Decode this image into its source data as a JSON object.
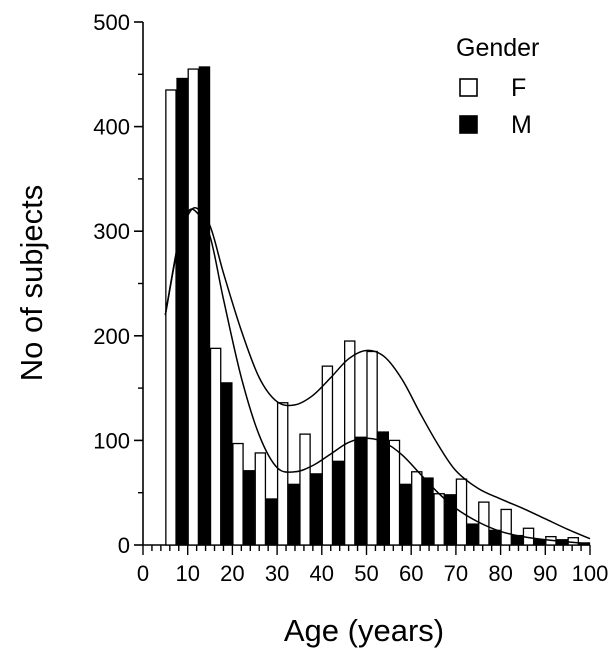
{
  "chart_data": {
    "type": "bar",
    "xlabel": "Age (years)",
    "ylabel": "No of subjects",
    "xlim": [
      0,
      100
    ],
    "ylim": [
      0,
      500
    ],
    "x_ticks": [
      "0",
      "10",
      "20",
      "30",
      "40",
      "50",
      "60",
      "70",
      "80",
      "90",
      "100"
    ],
    "y_ticks": [
      "0",
      "100",
      "200",
      "300",
      "400",
      "500"
    ],
    "x": [
      7.5,
      12.5,
      17.5,
      22.5,
      27.5,
      32.5,
      37.5,
      42.5,
      47.5,
      52.5,
      57.5,
      62.5,
      67.5,
      72.5,
      77.5,
      82.5,
      87.5,
      92.5,
      97.5
    ],
    "legend_title": "Gender",
    "legend_position": "top-right",
    "grid": false,
    "series": [
      {
        "name": "F",
        "color": "#ffffff",
        "values": [
          435,
          455,
          188,
          97,
          88,
          136,
          106,
          171,
          195,
          185,
          100,
          70,
          49,
          63,
          41,
          34,
          16,
          8,
          7
        ],
        "curve": [
          [
            5,
            220
          ],
          [
            8,
            292
          ],
          [
            10,
            315
          ],
          [
            12,
            322
          ],
          [
            15,
            305
          ],
          [
            18,
            260
          ],
          [
            22,
            205
          ],
          [
            26,
            160
          ],
          [
            30,
            137
          ],
          [
            34,
            134
          ],
          [
            38,
            143
          ],
          [
            42,
            160
          ],
          [
            46,
            178
          ],
          [
            50,
            186
          ],
          [
            54,
            180
          ],
          [
            58,
            158
          ],
          [
            62,
            126
          ],
          [
            66,
            96
          ],
          [
            70,
            71
          ],
          [
            75,
            54
          ],
          [
            80,
            44
          ],
          [
            85,
            35
          ],
          [
            90,
            25
          ],
          [
            95,
            15
          ],
          [
            100,
            6
          ]
        ]
      },
      {
        "name": "M",
        "color": "#000000",
        "values": [
          446,
          457,
          155,
          71,
          44,
          58,
          68,
          80,
          103,
          108,
          58,
          64,
          48,
          20,
          14,
          9,
          5,
          5,
          2
        ],
        "curve": [
          [
            5,
            220
          ],
          [
            8,
            290
          ],
          [
            10,
            318
          ],
          [
            12,
            318
          ],
          [
            15,
            295
          ],
          [
            18,
            235
          ],
          [
            22,
            160
          ],
          [
            26,
            105
          ],
          [
            30,
            74
          ],
          [
            34,
            70
          ],
          [
            38,
            76
          ],
          [
            42,
            87
          ],
          [
            46,
            98
          ],
          [
            50,
            102
          ],
          [
            54,
            98
          ],
          [
            58,
            86
          ],
          [
            62,
            68
          ],
          [
            66,
            50
          ],
          [
            70,
            35
          ],
          [
            75,
            22
          ],
          [
            80,
            13
          ],
          [
            85,
            8
          ],
          [
            90,
            5
          ],
          [
            95,
            3
          ],
          [
            100,
            1
          ]
        ]
      }
    ]
  }
}
